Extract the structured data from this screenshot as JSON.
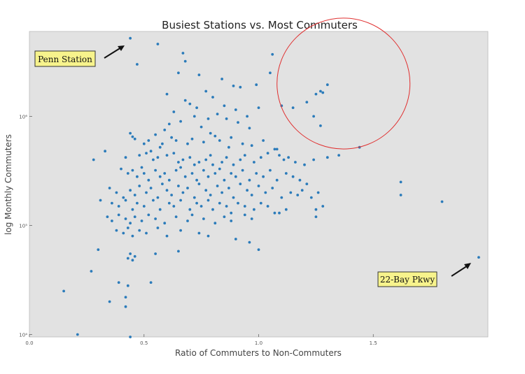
{
  "chart_data": {
    "type": "scatter",
    "title": "Busiest Stations vs. Most Commuters",
    "xlabel": "Ratio of Commuters to Non-Commuters",
    "ylabel": "log Monthly Commuters",
    "xlim": [
      0.0,
      2.0
    ],
    "ylim": [
      9500,
      6000000
    ],
    "y_scale": "log",
    "grid": false,
    "x_ticks": [
      {
        "value": 0.0,
        "label": "0.0"
      },
      {
        "value": 0.5,
        "label": "0.5"
      },
      {
        "value": 1.0,
        "label": "1.0"
      },
      {
        "value": 1.5,
        "label": "1.5"
      }
    ],
    "y_ticks": [
      {
        "value": 10000,
        "label": "10⁴"
      },
      {
        "value": 100000,
        "label": "10⁵"
      },
      {
        "value": 1000000,
        "label": "10⁶"
      }
    ],
    "marker_color": "#2b7bba",
    "background_color": "#e2e2e2",
    "highlight_color": "#e03030",
    "highlight_ellipse": {
      "cx": 1.37,
      "cy": 2000000,
      "rx": 0.29,
      "ry_decades": 0.6
    },
    "annotations": [
      {
        "label": "Penn Station",
        "x": 0.44,
        "y": 5200000
      },
      {
        "label": "22-Bay Pkwy",
        "x": 1.96,
        "y": 51000
      }
    ],
    "series": [
      {
        "x": [
          0.44,
          0.56,
          0.47,
          0.67,
          0.68,
          0.74,
          0.65,
          0.84,
          0.99,
          0.89,
          0.92,
          1.06,
          1.05,
          1.28,
          1.3,
          1.24,
          1.27,
          1.21,
          1.1,
          1.15,
          1.25,
          1.27,
          0.6,
          0.68,
          0.7,
          0.73,
          0.77,
          0.8,
          0.85,
          0.63,
          0.72,
          0.78,
          0.82,
          0.9,
          0.95,
          1.0,
          0.59,
          0.61,
          0.66,
          0.75,
          0.79,
          0.86,
          0.91,
          0.96,
          0.45,
          0.46,
          0.44,
          0.5,
          0.52,
          0.55,
          0.57,
          0.58,
          0.62,
          0.64,
          0.69,
          0.71,
          0.76,
          0.81,
          0.83,
          0.87,
          0.88,
          0.93,
          0.97,
          1.02,
          1.08,
          0.33,
          0.28,
          0.42,
          0.48,
          0.51,
          0.53,
          0.54,
          0.56,
          0.6,
          0.63,
          0.65,
          0.67,
          0.7,
          0.72,
          0.74,
          0.77,
          0.79,
          0.8,
          0.84,
          0.86,
          0.89,
          0.92,
          0.94,
          0.98,
          1.01,
          1.04,
          1.07,
          1.09,
          1.11,
          1.13,
          1.16,
          1.2,
          1.24,
          1.3,
          1.35,
          1.44,
          0.4,
          0.43,
          0.45,
          0.47,
          0.49,
          0.5,
          0.52,
          0.55,
          0.57,
          0.59,
          0.61,
          0.64,
          0.66,
          0.68,
          0.71,
          0.73,
          0.76,
          0.78,
          0.81,
          0.83,
          0.85,
          0.88,
          0.9,
          0.93,
          0.96,
          0.99,
          1.02,
          1.05,
          1.08,
          1.12,
          1.15,
          1.18,
          1.21,
          0.35,
          0.38,
          0.41,
          0.44,
          0.46,
          0.48,
          0.51,
          0.53,
          0.56,
          0.58,
          0.6,
          0.62,
          0.65,
          0.67,
          0.69,
          0.72,
          0.74,
          0.77,
          0.79,
          0.82,
          0.84,
          0.87,
          0.89,
          0.92,
          0.95,
          0.97,
          1.0,
          1.03,
          1.06,
          1.1,
          1.14,
          1.17,
          1.19,
          1.23,
          1.26,
          0.31,
          0.36,
          0.39,
          0.42,
          0.45,
          0.47,
          0.5,
          0.54,
          0.57,
          0.61,
          0.63,
          0.66,
          0.7,
          0.73,
          0.75,
          0.78,
          0.8,
          0.83,
          0.86,
          0.88,
          0.91,
          0.94,
          0.98,
          1.01,
          1.04,
          1.09,
          1.12,
          1.25,
          1.28,
          1.07,
          1.25,
          1.62,
          1.62,
          1.8,
          0.34,
          0.36,
          0.39,
          0.42,
          0.44,
          0.46,
          0.49,
          0.52,
          0.55,
          0.59,
          0.64,
          0.69,
          0.71,
          0.76,
          0.81,
          0.85,
          0.88,
          0.94,
          0.97,
          0.38,
          0.41,
          0.43,
          0.45,
          0.48,
          0.51,
          0.56,
          0.6,
          0.66,
          0.74,
          0.78,
          0.9,
          0.96,
          1.0,
          0.3,
          0.44,
          0.43,
          0.45,
          0.46,
          0.55,
          0.65,
          0.27,
          0.15,
          0.35,
          0.39,
          0.43,
          0.53,
          0.42,
          0.21,
          0.42,
          0.44,
          1.96
        ],
        "y": [
          5200000,
          4600000,
          3000000,
          3800000,
          3200000,
          2400000,
          2500000,
          2200000,
          1950000,
          1900000,
          1850000,
          3700000,
          2500000,
          1650000,
          1950000,
          1000000,
          820000,
          1350000,
          1250000,
          1200000,
          1600000,
          1700000,
          1600000,
          1400000,
          1300000,
          1200000,
          1700000,
          1500000,
          1250000,
          1100000,
          1000000,
          950000,
          1050000,
          1150000,
          1000000,
          1200000,
          750000,
          850000,
          900000,
          800000,
          700000,
          950000,
          880000,
          780000,
          650000,
          620000,
          700000,
          560000,
          600000,
          680000,
          520000,
          560000,
          640000,
          600000,
          560000,
          620000,
          580000,
          660000,
          600000,
          520000,
          640000,
          560000,
          540000,
          600000,
          500000,
          480000,
          400000,
          420000,
          440000,
          460000,
          480000,
          400000,
          420000,
          440000,
          460000,
          380000,
          400000,
          420000,
          360000,
          380000,
          400000,
          440000,
          360000,
          380000,
          420000,
          360000,
          400000,
          440000,
          380000,
          420000,
          460000,
          500000,
          440000,
          400000,
          420000,
          380000,
          360000,
          400000,
          420000,
          440000,
          520000,
          330000,
          300000,
          320000,
          280000,
          340000,
          300000,
          260000,
          320000,
          280000,
          300000,
          260000,
          320000,
          340000,
          280000,
          300000,
          260000,
          320000,
          280000,
          300000,
          330000,
          260000,
          300000,
          280000,
          320000,
          260000,
          300000,
          280000,
          320000,
          260000,
          300000,
          280000,
          260000,
          240000,
          220000,
          200000,
          180000,
          210000,
          190000,
          230000,
          200000,
          220000,
          180000,
          240000,
          210000,
          190000,
          230000,
          200000,
          220000,
          180000,
          240000,
          210000,
          190000,
          230000,
          200000,
          220000,
          180000,
          240000,
          210000,
          190000,
          230000,
          200000,
          220000,
          180000,
          200000,
          190000,
          210000,
          180000,
          200000,
          170000,
          160000,
          150000,
          170000,
          140000,
          160000,
          150000,
          170000,
          140000,
          160000,
          150000,
          170000,
          140000,
          160000,
          150000,
          170000,
          140000,
          160000,
          150000,
          130000,
          160000,
          150000,
          140000,
          160000,
          150000,
          130000,
          140000,
          120000,
          150000,
          130000,
          140000,
          250000,
          190000,
          165000,
          120000,
          110000,
          125000,
          115000,
          105000,
          120000,
          110000,
          125000,
          115000,
          105000,
          120000,
          110000,
          125000,
          115000,
          105000,
          120000,
          110000,
          125000,
          115000,
          90000,
          85000,
          95000,
          80000,
          90000,
          85000,
          95000,
          80000,
          90000,
          85000,
          80000,
          75000,
          70000,
          60000,
          60000,
          55000,
          50000,
          48000,
          52000,
          55000,
          58000,
          38000,
          25000,
          20000,
          30000,
          28000,
          30000,
          22000,
          10000,
          18000,
          9500,
          51000
        ]
      }
    ]
  }
}
